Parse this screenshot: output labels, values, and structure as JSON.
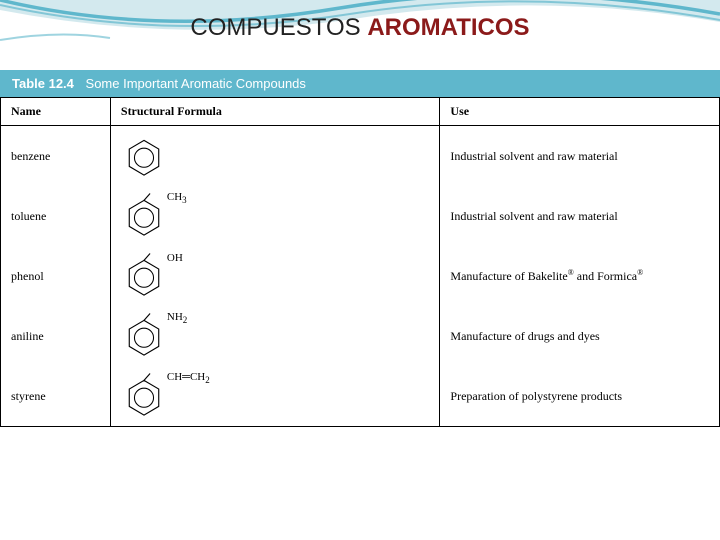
{
  "accent_color": "#5fb7cc",
  "curve_color_light": "#aed7e0",
  "title": {
    "part1": "COMPUESTOS ",
    "part2": "AROMATICOS",
    "part2_color": "#8b1a1a"
  },
  "table": {
    "header_bg": "#5fb7cc",
    "header_text_color": "#ffffff",
    "number": "Table 12.4",
    "caption": "Some Important Aromatic Compounds",
    "columns": [
      "Name",
      "Structural Formula",
      "Use"
    ],
    "rows": [
      {
        "name": "benzene",
        "substituent": "",
        "use": "Industrial solvent and raw material"
      },
      {
        "name": "toluene",
        "substituent": "CH3",
        "use": "Industrial solvent and raw material"
      },
      {
        "name": "phenol",
        "substituent": "OH",
        "use": "Manufacture of Bakelite® and Formica®"
      },
      {
        "name": "aniline",
        "substituent": "NH2",
        "use": "Manufacture of drugs and dyes"
      },
      {
        "name": "styrene",
        "substituent": "CH=CH2",
        "use": "Preparation of polystyrene products"
      }
    ]
  }
}
